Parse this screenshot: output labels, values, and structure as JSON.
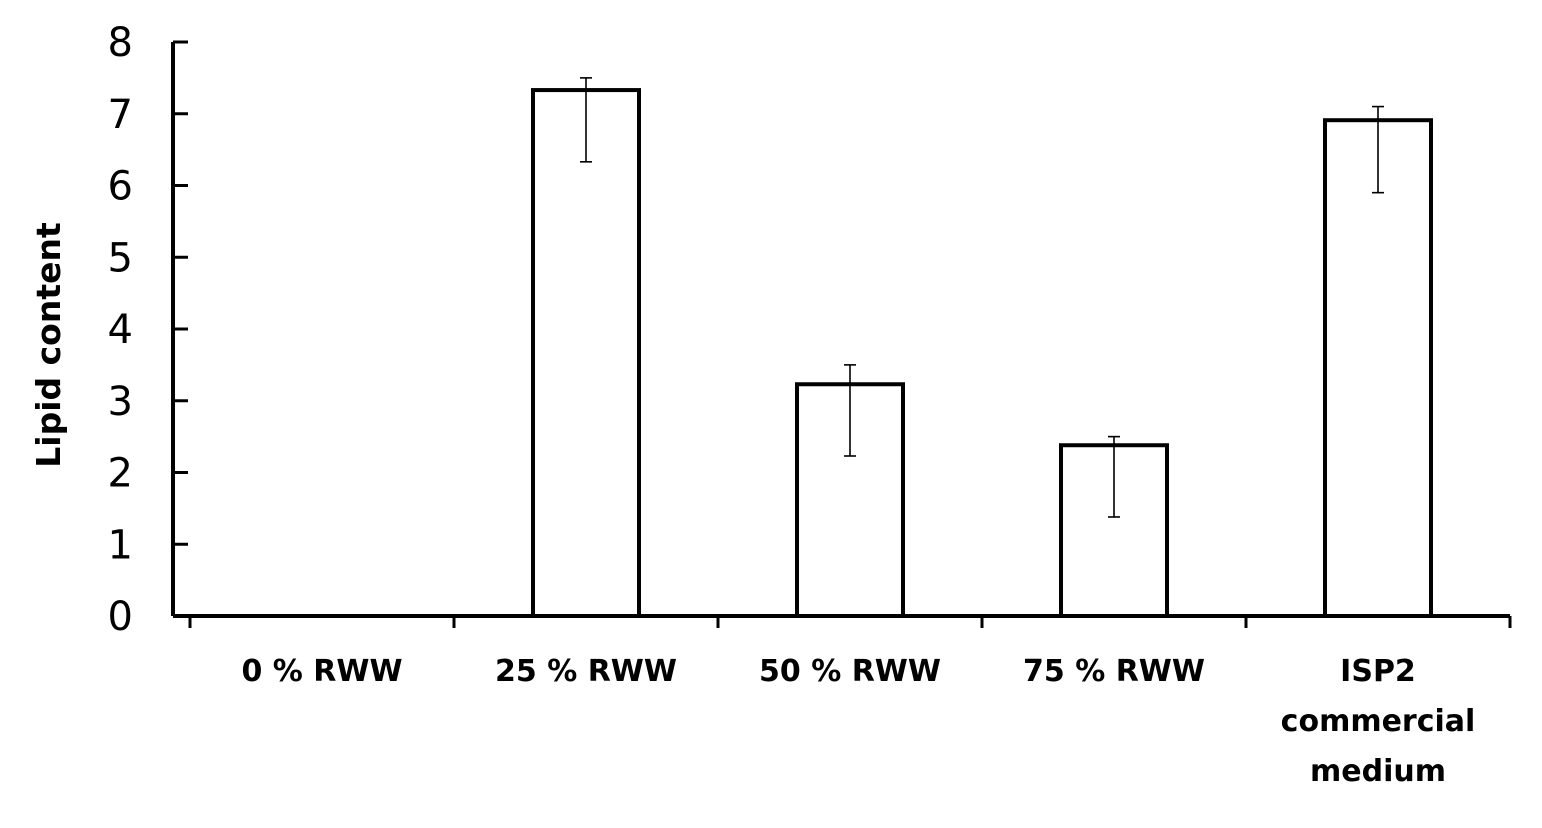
{
  "chart_data": {
    "type": "bar",
    "title": "",
    "xlabel": "",
    "ylabel": "Lipid content",
    "ylim": [
      0,
      8
    ],
    "yticks": [
      0,
      1,
      2,
      3,
      4,
      5,
      6,
      7,
      8
    ],
    "grid": false,
    "legend": "none",
    "categories": [
      [
        "0 % RWW"
      ],
      [
        "25 % RWW"
      ],
      [
        "50 % RWW"
      ],
      [
        "75 % RWW"
      ],
      [
        "ISP2",
        "commercial",
        "medium"
      ]
    ],
    "values": [
      0,
      7.33,
      3.23,
      2.38,
      6.91
    ],
    "error_upper": [
      0,
      7.5,
      3.5,
      2.5,
      7.1
    ],
    "error_lower": [
      0,
      6.33,
      2.23,
      1.38,
      5.9
    ],
    "bar_fill": "#ffffff",
    "bar_stroke": "#000000",
    "axis_color": "#000000"
  }
}
